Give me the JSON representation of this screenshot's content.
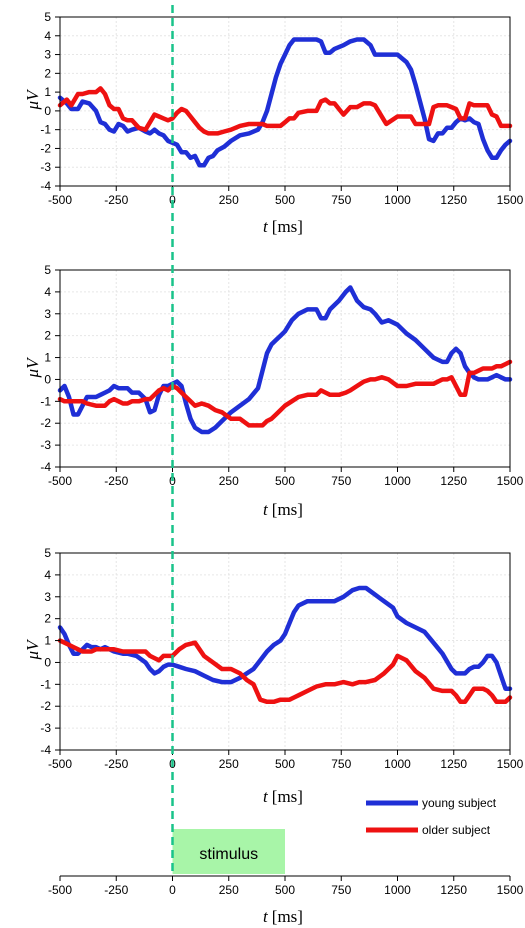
{
  "chart_data": [
    {
      "type": "line",
      "xlabel": "t",
      "xunit": "[ms]",
      "ylabel": "μV",
      "xlim": [
        -500,
        1500
      ],
      "ylim": [
        -4,
        5
      ],
      "xticks": [
        "-500",
        "-250",
        "0",
        "250",
        "500",
        "750",
        "1000",
        "1250",
        "1500"
      ],
      "yticks": [
        "-4",
        "-3",
        "-2",
        "-1",
        "0",
        "1",
        "2",
        "3",
        "4",
        "5"
      ],
      "grid": true,
      "series": [
        {
          "name": "young subject",
          "color": "#1f2fd6",
          "x": [
            -500,
            -470,
            -450,
            -420,
            -400,
            -370,
            -340,
            -320,
            -300,
            -280,
            -260,
            -240,
            -220,
            -200,
            -180,
            -150,
            -120,
            -100,
            -80,
            -60,
            -40,
            -20,
            0,
            20,
            40,
            60,
            80,
            100,
            120,
            140,
            160,
            180,
            200,
            230,
            260,
            300,
            340,
            380,
            400,
            420,
            440,
            460,
            480,
            500,
            520,
            540,
            560,
            600,
            640,
            660,
            680,
            700,
            720,
            760,
            790,
            820,
            850,
            880,
            900,
            950,
            1000,
            1040,
            1060,
            1080,
            1100,
            1120,
            1140,
            1160,
            1180,
            1200,
            1220,
            1240,
            1260,
            1280,
            1300,
            1320,
            1340,
            1360,
            1380,
            1400,
            1420,
            1440,
            1460,
            1480,
            1500
          ],
          "y": [
            0.7,
            0.4,
            0.1,
            0.1,
            0.5,
            0.4,
            0.0,
            -0.6,
            -0.7,
            -1.0,
            -1.1,
            -0.7,
            -0.8,
            -1.1,
            -1.0,
            -0.9,
            -1.1,
            -1.2,
            -1.0,
            -1.2,
            -1.3,
            -1.6,
            -1.7,
            -1.8,
            -2.2,
            -2.2,
            -2.5,
            -2.4,
            -2.9,
            -2.9,
            -2.5,
            -2.4,
            -2.1,
            -1.9,
            -1.6,
            -1.3,
            -1.2,
            -1.0,
            -0.6,
            0.0,
            0.9,
            1.8,
            2.5,
            3.0,
            3.5,
            3.8,
            3.8,
            3.8,
            3.8,
            3.7,
            3.1,
            3.1,
            3.3,
            3.5,
            3.7,
            3.8,
            3.8,
            3.5,
            3.0,
            3.0,
            3.0,
            2.6,
            2.2,
            1.4,
            0.5,
            -0.4,
            -1.5,
            -1.6,
            -1.2,
            -1.2,
            -0.9,
            -0.9,
            -0.6,
            -0.4,
            -0.5,
            -0.4,
            -0.6,
            -0.7,
            -1.5,
            -2.1,
            -2.5,
            -2.5,
            -2.1,
            -1.8,
            -1.6
          ]
        },
        {
          "name": "older subject",
          "color": "#ee1111",
          "x": [
            -500,
            -470,
            -450,
            -420,
            -400,
            -370,
            -340,
            -320,
            -300,
            -280,
            -260,
            -240,
            -220,
            -200,
            -180,
            -150,
            -120,
            -100,
            -80,
            -60,
            -40,
            -20,
            0,
            20,
            40,
            60,
            80,
            100,
            120,
            140,
            160,
            180,
            200,
            230,
            260,
            300,
            340,
            380,
            400,
            420,
            440,
            460,
            480,
            500,
            520,
            540,
            560,
            600,
            640,
            660,
            680,
            700,
            720,
            760,
            790,
            820,
            850,
            880,
            900,
            950,
            1000,
            1040,
            1060,
            1080,
            1100,
            1120,
            1140,
            1160,
            1180,
            1200,
            1220,
            1240,
            1260,
            1280,
            1300,
            1320,
            1340,
            1360,
            1380,
            1400,
            1420,
            1440,
            1460,
            1480,
            1500
          ],
          "y": [
            0.3,
            0.6,
            0.3,
            0.9,
            0.9,
            1.0,
            1.0,
            1.2,
            0.9,
            0.3,
            0.1,
            0.1,
            -0.4,
            -0.5,
            -0.5,
            -0.9,
            -1.0,
            -0.6,
            -0.2,
            -0.3,
            -0.4,
            -0.5,
            -0.4,
            -0.1,
            0.1,
            0.0,
            -0.3,
            -0.6,
            -0.9,
            -1.1,
            -1.2,
            -1.2,
            -1.2,
            -1.1,
            -1.0,
            -0.8,
            -0.7,
            -0.7,
            -0.7,
            -0.8,
            -0.8,
            -0.8,
            -0.8,
            -0.6,
            -0.4,
            -0.4,
            -0.1,
            0.0,
            0.0,
            0.5,
            0.6,
            0.4,
            0.4,
            -0.2,
            0.2,
            0.2,
            0.4,
            0.4,
            0.3,
            -0.7,
            -0.3,
            -0.3,
            -0.3,
            -0.7,
            -0.7,
            -0.7,
            -0.7,
            0.2,
            0.3,
            0.3,
            0.3,
            0.2,
            0.1,
            -0.4,
            -0.4,
            0.4,
            0.3,
            0.3,
            0.3,
            0.3,
            -0.2,
            -0.3,
            -0.8,
            -0.8,
            -0.8
          ]
        }
      ]
    },
    {
      "type": "line",
      "xlabel": "t",
      "xunit": "[ms]",
      "ylabel": "μV",
      "xlim": [
        -500,
        1500
      ],
      "ylim": [
        -4,
        5
      ],
      "xticks": [
        "-500",
        "-250",
        "0",
        "250",
        "500",
        "750",
        "1000",
        "1250",
        "1500"
      ],
      "yticks": [
        "-4",
        "-3",
        "-2",
        "-1",
        "0",
        "1",
        "2",
        "3",
        "4",
        "5"
      ],
      "grid": true,
      "series": [
        {
          "name": "young subject",
          "color": "#1f2fd6",
          "x": [
            -500,
            -480,
            -460,
            -440,
            -420,
            -400,
            -380,
            -340,
            -320,
            -300,
            -280,
            -260,
            -240,
            -220,
            -200,
            -180,
            -150,
            -120,
            -100,
            -80,
            -60,
            -40,
            -20,
            0,
            20,
            40,
            60,
            80,
            100,
            130,
            160,
            190,
            220,
            260,
            300,
            340,
            380,
            400,
            420,
            440,
            460,
            480,
            500,
            530,
            560,
            600,
            640,
            660,
            680,
            700,
            740,
            770,
            790,
            820,
            850,
            880,
            900,
            930,
            960,
            1000,
            1040,
            1080,
            1120,
            1160,
            1200,
            1220,
            1240,
            1260,
            1280,
            1300,
            1320,
            1340,
            1360,
            1380,
            1400,
            1420,
            1440,
            1460,
            1480,
            1500
          ],
          "y": [
            -0.5,
            -0.3,
            -0.8,
            -1.6,
            -1.6,
            -1.2,
            -0.8,
            -0.8,
            -0.7,
            -0.6,
            -0.5,
            -0.3,
            -0.4,
            -0.4,
            -0.4,
            -0.6,
            -0.6,
            -0.9,
            -1.5,
            -1.4,
            -0.7,
            -0.3,
            -0.3,
            -0.2,
            -0.1,
            -0.3,
            -1.1,
            -1.8,
            -2.2,
            -2.4,
            -2.4,
            -2.2,
            -1.9,
            -1.5,
            -1.2,
            -0.9,
            -0.4,
            0.4,
            1.2,
            1.6,
            1.8,
            2.0,
            2.2,
            2.7,
            3.0,
            3.2,
            3.2,
            2.8,
            2.8,
            3.2,
            3.6,
            4.0,
            4.2,
            3.6,
            3.3,
            3.2,
            3.0,
            2.6,
            2.7,
            2.5,
            2.1,
            1.8,
            1.4,
            1.0,
            0.8,
            0.8,
            1.2,
            1.4,
            1.2,
            0.6,
            0.3,
            0.1,
            0.0,
            0.0,
            0.0,
            0.1,
            0.2,
            0.1,
            0.0,
            0.0
          ]
        },
        {
          "name": "older subject",
          "color": "#ee1111",
          "x": [
            -500,
            -480,
            -460,
            -440,
            -420,
            -400,
            -380,
            -340,
            -320,
            -300,
            -280,
            -260,
            -240,
            -220,
            -200,
            -180,
            -150,
            -120,
            -100,
            -80,
            -60,
            -40,
            -20,
            0,
            20,
            40,
            60,
            80,
            100,
            130,
            160,
            190,
            220,
            260,
            300,
            340,
            380,
            400,
            420,
            440,
            460,
            480,
            500,
            530,
            560,
            600,
            640,
            660,
            680,
            700,
            740,
            770,
            790,
            820,
            850,
            880,
            900,
            930,
            960,
            1000,
            1040,
            1080,
            1120,
            1160,
            1200,
            1220,
            1240,
            1260,
            1280,
            1300,
            1320,
            1340,
            1360,
            1380,
            1400,
            1420,
            1440,
            1460,
            1480,
            1500
          ],
          "y": [
            -0.9,
            -1.0,
            -1.0,
            -1.0,
            -1.0,
            -1.0,
            -1.1,
            -1.2,
            -1.2,
            -1.2,
            -1.0,
            -0.9,
            -1.0,
            -1.1,
            -1.1,
            -1.0,
            -1.0,
            -0.9,
            -0.9,
            -0.7,
            -0.5,
            -0.4,
            -0.5,
            -0.3,
            -0.4,
            -0.6,
            -0.8,
            -1.0,
            -1.2,
            -1.1,
            -1.2,
            -1.4,
            -1.5,
            -1.8,
            -1.8,
            -2.1,
            -2.1,
            -2.1,
            -1.9,
            -1.8,
            -1.6,
            -1.4,
            -1.2,
            -1.0,
            -0.8,
            -0.7,
            -0.7,
            -0.5,
            -0.6,
            -0.7,
            -0.7,
            -0.6,
            -0.5,
            -0.3,
            -0.1,
            0.0,
            0.0,
            0.1,
            0.0,
            -0.3,
            -0.3,
            -0.2,
            -0.2,
            -0.2,
            0.0,
            0.0,
            0.1,
            -0.3,
            -0.7,
            -0.7,
            0.3,
            0.3,
            0.4,
            0.5,
            0.5,
            0.5,
            0.6,
            0.6,
            0.7,
            0.8
          ]
        }
      ]
    },
    {
      "type": "line",
      "xlabel": "t",
      "xunit": "[ms]",
      "ylabel": "μV",
      "xlim": [
        -500,
        1500
      ],
      "ylim": [
        -4,
        5
      ],
      "xticks": [
        "-500",
        "-250",
        "0",
        "250",
        "500",
        "750",
        "1000",
        "1250",
        "1500"
      ],
      "yticks": [
        "-4",
        "-3",
        "-2",
        "-1",
        "0",
        "1",
        "2",
        "3",
        "4",
        "5"
      ],
      "grid": true,
      "series": [
        {
          "name": "young subject",
          "color": "#1f2fd6",
          "x": [
            -500,
            -480,
            -460,
            -440,
            -420,
            -400,
            -380,
            -360,
            -340,
            -320,
            -300,
            -260,
            -220,
            -200,
            -160,
            -120,
            -100,
            -80,
            -60,
            -40,
            -20,
            0,
            30,
            60,
            100,
            140,
            180,
            220,
            260,
            300,
            330,
            360,
            390,
            420,
            450,
            480,
            500,
            520,
            540,
            560,
            600,
            640,
            680,
            720,
            760,
            800,
            830,
            860,
            900,
            940,
            980,
            1000,
            1040,
            1080,
            1120,
            1160,
            1200,
            1240,
            1260,
            1280,
            1300,
            1320,
            1340,
            1360,
            1380,
            1400,
            1420,
            1440,
            1460,
            1480,
            1500
          ],
          "y": [
            1.6,
            1.3,
            0.8,
            0.4,
            0.4,
            0.6,
            0.8,
            0.7,
            0.7,
            0.6,
            0.7,
            0.5,
            0.4,
            0.4,
            0.3,
            0.0,
            -0.3,
            -0.5,
            -0.4,
            -0.2,
            -0.1,
            -0.1,
            -0.2,
            -0.3,
            -0.4,
            -0.6,
            -0.8,
            -0.9,
            -0.9,
            -0.7,
            -0.5,
            -0.3,
            0.1,
            0.5,
            0.8,
            1.0,
            1.3,
            1.8,
            2.3,
            2.6,
            2.8,
            2.8,
            2.8,
            2.8,
            3.0,
            3.3,
            3.4,
            3.4,
            3.1,
            2.8,
            2.5,
            2.1,
            1.8,
            1.6,
            1.4,
            0.9,
            0.4,
            -0.3,
            -0.5,
            -0.5,
            -0.5,
            -0.3,
            -0.2,
            -0.2,
            0.0,
            0.3,
            0.3,
            0.0,
            -0.6,
            -1.2,
            -1.2
          ]
        },
        {
          "name": "older subject",
          "color": "#ee1111",
          "x": [
            -500,
            -480,
            -460,
            -440,
            -420,
            -400,
            -380,
            -360,
            -340,
            -320,
            -300,
            -260,
            -220,
            -200,
            -160,
            -120,
            -100,
            -80,
            -60,
            -40,
            -20,
            0,
            30,
            60,
            100,
            140,
            180,
            220,
            260,
            300,
            330,
            360,
            390,
            420,
            450,
            480,
            500,
            520,
            540,
            560,
            600,
            640,
            680,
            720,
            760,
            800,
            830,
            860,
            900,
            940,
            980,
            1000,
            1040,
            1080,
            1120,
            1160,
            1200,
            1240,
            1260,
            1280,
            1300,
            1320,
            1340,
            1360,
            1380,
            1400,
            1420,
            1440,
            1460,
            1480,
            1500
          ],
          "y": [
            1.0,
            0.9,
            0.8,
            0.7,
            0.6,
            0.5,
            0.5,
            0.5,
            0.6,
            0.6,
            0.6,
            0.6,
            0.5,
            0.5,
            0.5,
            0.5,
            0.3,
            0.2,
            0.1,
            0.3,
            0.3,
            0.3,
            0.6,
            0.8,
            0.9,
            0.3,
            0.0,
            -0.3,
            -0.3,
            -0.5,
            -0.8,
            -1.0,
            -1.7,
            -1.8,
            -1.8,
            -1.7,
            -1.7,
            -1.7,
            -1.6,
            -1.5,
            -1.3,
            -1.1,
            -1.0,
            -1.0,
            -0.9,
            -1.0,
            -0.9,
            -0.9,
            -0.8,
            -0.5,
            -0.1,
            0.3,
            0.1,
            -0.4,
            -0.7,
            -1.2,
            -1.3,
            -1.3,
            -1.5,
            -1.8,
            -1.8,
            -1.5,
            -1.2,
            -1.2,
            -1.2,
            -1.3,
            -1.5,
            -1.8,
            -1.8,
            -1.8,
            -1.6
          ]
        }
      ]
    }
  ],
  "legend": {
    "items": [
      {
        "label": "young subject",
        "color": "#1f2fd6"
      },
      {
        "label": "older subject",
        "color": "#ee1111"
      }
    ]
  },
  "stimulus": {
    "label": "stimulus",
    "start": 0,
    "end": 500,
    "color": "#a8f5a8"
  },
  "timeline": {
    "xlabel": "t",
    "xunit": "[ms]",
    "xlim": [
      -500,
      1500
    ],
    "xticks": [
      "-500",
      "-250",
      "0",
      "250",
      "500",
      "750",
      "1000",
      "1250",
      "1500"
    ]
  },
  "stimulus_line_color": "#19c38a"
}
